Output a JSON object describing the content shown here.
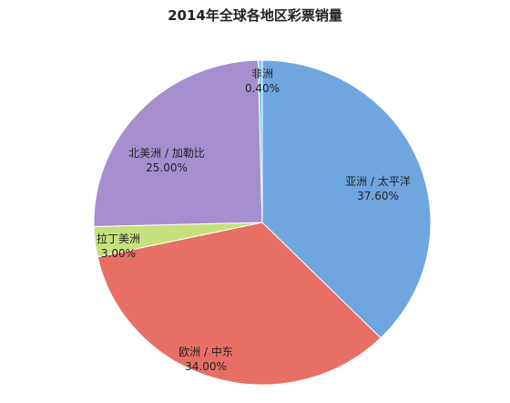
{
  "chart_data": {
    "type": "pie",
    "title": "2014年全球各地区彩票销量",
    "slices": [
      {
        "name": "亚洲 / 太平洋",
        "value": 37.6,
        "label": "37.60%",
        "color": "#6fa6e0"
      },
      {
        "name": "欧洲 / 中东",
        "value": 34.0,
        "label": "34.00%",
        "color": "#e86f66"
      },
      {
        "name": "拉丁美洲",
        "value": 3.0,
        "label": "3.00%",
        "color": "#c7e07e"
      },
      {
        "name": "北美洲 / 加勒比",
        "value": 25.0,
        "label": "25.00%",
        "color": "#a58fcf"
      },
      {
        "name": "非洲",
        "value": 0.4,
        "label": "0.40%",
        "color": "#7fd2e5"
      }
    ],
    "legend": "none"
  }
}
